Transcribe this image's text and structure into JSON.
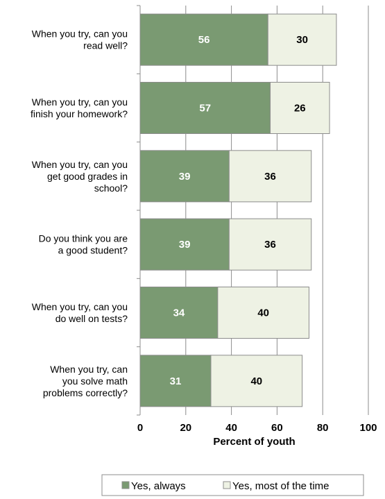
{
  "chart_data": {
    "type": "bar",
    "orientation": "horizontal",
    "stacked": true,
    "categories": [
      [
        "When you try, can you",
        "read well?"
      ],
      [
        "When you try, can you",
        "finish your homework?"
      ],
      [
        "When you try, can you",
        "get good grades in",
        "school?"
      ],
      [
        "Do you think you are",
        "a good student?"
      ],
      [
        "When you try, can you",
        "do well on tests?"
      ],
      [
        "When you try, can",
        "you solve math",
        "problems correctly?"
      ]
    ],
    "series": [
      {
        "name": "Yes, always",
        "values": [
          56,
          57,
          39,
          39,
          34,
          31
        ],
        "color": "#7a9a72",
        "label_color": "#ffffff"
      },
      {
        "name": "Yes, most of the time",
        "values": [
          30,
          26,
          36,
          36,
          40,
          40
        ],
        "color": "#eef2e4",
        "label_color": "#000000"
      }
    ],
    "xlabel": "Percent of youth",
    "xlim": [
      0,
      100
    ],
    "xticks": [
      0,
      20,
      40,
      60,
      80,
      100
    ],
    "grid": true,
    "legend_position": "bottom-right"
  }
}
